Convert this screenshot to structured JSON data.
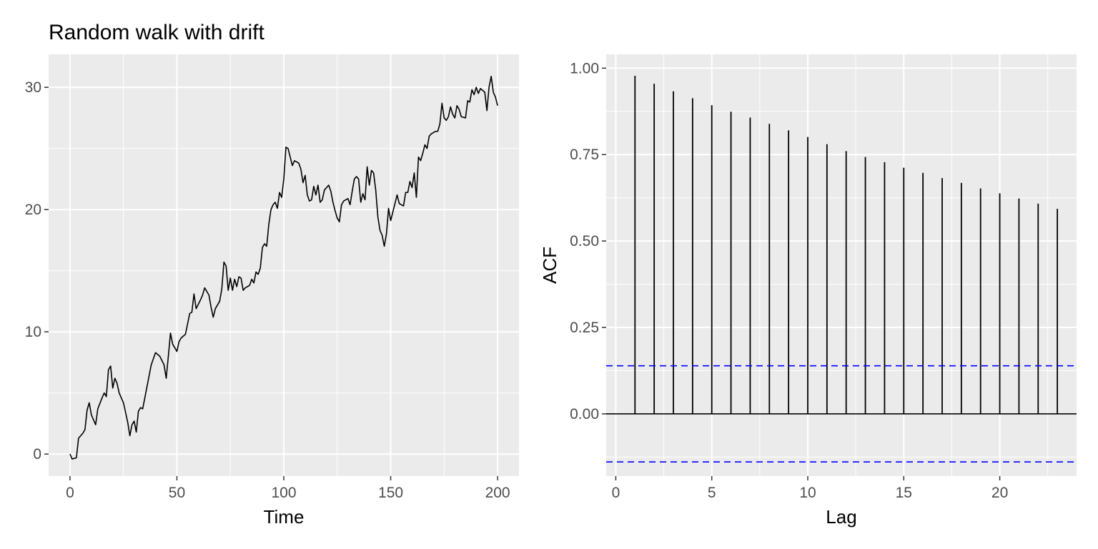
{
  "chart_data": [
    {
      "type": "line",
      "title": "Random walk with drift",
      "xlabel": "Time",
      "ylabel": "",
      "xlim": [
        -10,
        210
      ],
      "ylim": [
        -1.8,
        32.7
      ],
      "x_ticks": [
        0,
        50,
        100,
        150,
        200
      ],
      "y_ticks": [
        0,
        10,
        20,
        30
      ],
      "grid": true,
      "line_color": "#000000",
      "series_keypoints": [
        [
          0,
          0
        ],
        [
          1,
          -0.4
        ],
        [
          3,
          -0.3
        ],
        [
          4,
          1.3
        ],
        [
          6,
          1.7
        ],
        [
          7,
          2.0
        ],
        [
          8,
          3.6
        ],
        [
          9,
          4.2
        ],
        [
          10,
          3.2
        ],
        [
          12,
          2.4
        ],
        [
          13,
          3.7
        ],
        [
          15,
          4.6
        ],
        [
          16,
          5.0
        ],
        [
          17,
          4.7
        ],
        [
          18,
          6.9
        ],
        [
          19,
          7.2
        ],
        [
          20,
          5.4
        ],
        [
          21,
          6.2
        ],
        [
          22,
          5.8
        ],
        [
          23,
          5.0
        ],
        [
          25,
          4.2
        ],
        [
          27,
          2.6
        ],
        [
          28,
          1.5
        ],
        [
          29,
          2.4
        ],
        [
          30,
          2.7
        ],
        [
          31,
          1.8
        ],
        [
          32,
          3.5
        ],
        [
          33,
          3.8
        ],
        [
          34,
          3.7
        ],
        [
          36,
          5.5
        ],
        [
          38,
          7.3
        ],
        [
          40,
          8.3
        ],
        [
          42,
          8.0
        ],
        [
          44,
          7.3
        ],
        [
          45,
          6.2
        ],
        [
          46,
          8.0
        ],
        [
          47,
          9.9
        ],
        [
          48,
          9.0
        ],
        [
          50,
          8.4
        ],
        [
          51,
          9.2
        ],
        [
          52,
          9.5
        ],
        [
          54,
          9.8
        ],
        [
          56,
          11.5
        ],
        [
          57,
          11.6
        ],
        [
          58,
          13.1
        ],
        [
          59,
          11.9
        ],
        [
          61,
          12.6
        ],
        [
          62,
          13.0
        ],
        [
          63,
          13.6
        ],
        [
          65,
          13.0
        ],
        [
          66,
          12.0
        ],
        [
          67,
          11.2
        ],
        [
          68,
          11.9
        ],
        [
          70,
          12.5
        ],
        [
          71,
          13.5
        ],
        [
          72,
          15.7
        ],
        [
          73,
          15.4
        ],
        [
          74,
          13.4
        ],
        [
          75,
          14.4
        ],
        [
          76,
          13.4
        ],
        [
          77,
          14.3
        ],
        [
          78,
          13.7
        ],
        [
          79,
          14.5
        ],
        [
          80,
          14.4
        ],
        [
          81,
          13.4
        ],
        [
          82,
          13.6
        ],
        [
          84,
          13.8
        ],
        [
          85,
          14.3
        ],
        [
          86,
          14.0
        ],
        [
          87,
          14.9
        ],
        [
          88,
          14.7
        ],
        [
          89,
          15.2
        ],
        [
          90,
          16.9
        ],
        [
          91,
          17.2
        ],
        [
          92,
          17.0
        ],
        [
          93,
          18.8
        ],
        [
          94,
          20.0
        ],
        [
          95,
          20.4
        ],
        [
          96,
          20.6
        ],
        [
          97,
          20.1
        ],
        [
          98,
          21.4
        ],
        [
          99,
          21.0
        ],
        [
          100,
          22.5
        ],
        [
          101,
          25.1
        ],
        [
          102,
          25.0
        ],
        [
          103,
          24.3
        ],
        [
          104,
          23.6
        ],
        [
          105,
          24.0
        ],
        [
          107,
          23.8
        ],
        [
          108,
          23.3
        ],
        [
          109,
          22.2
        ],
        [
          110,
          22.8
        ],
        [
          111,
          21.2
        ],
        [
          112,
          20.7
        ],
        [
          113,
          20.8
        ],
        [
          114,
          21.9
        ],
        [
          115,
          21.2
        ],
        [
          116,
          22.0
        ],
        [
          117,
          20.6
        ],
        [
          118,
          20.8
        ],
        [
          119,
          21.6
        ],
        [
          121,
          22.0
        ],
        [
          122,
          21.5
        ],
        [
          123,
          20.6
        ],
        [
          124,
          19.9
        ],
        [
          125,
          19.3
        ],
        [
          126,
          19.0
        ],
        [
          127,
          20.4
        ],
        [
          128,
          20.7
        ],
        [
          130,
          20.9
        ],
        [
          131,
          20.4
        ],
        [
          132,
          21.5
        ],
        [
          133,
          22.5
        ],
        [
          134,
          22.7
        ],
        [
          135,
          22.5
        ],
        [
          136,
          20.6
        ],
        [
          137,
          21.3
        ],
        [
          138,
          20.8
        ],
        [
          139,
          23.5
        ],
        [
          140,
          22.0
        ],
        [
          141,
          23.2
        ],
        [
          142,
          23.0
        ],
        [
          143,
          21.6
        ],
        [
          144,
          19.4
        ],
        [
          145,
          18.3
        ],
        [
          146,
          17.9
        ],
        [
          147,
          17.0
        ],
        [
          148,
          18.0
        ],
        [
          149,
          20.1
        ],
        [
          150,
          19.1
        ],
        [
          151,
          19.8
        ],
        [
          152,
          20.5
        ],
        [
          153,
          21.2
        ],
        [
          154,
          20.5
        ],
        [
          156,
          20.3
        ],
        [
          157,
          21.4
        ],
        [
          158,
          21.4
        ],
        [
          159,
          22.3
        ],
        [
          160,
          21.8
        ],
        [
          161,
          23.0
        ],
        [
          162,
          21.0
        ],
        [
          163,
          24.3
        ],
        [
          164,
          24.0
        ],
        [
          165,
          24.6
        ],
        [
          166,
          25.3
        ],
        [
          167,
          25.0
        ],
        [
          168,
          26.0
        ],
        [
          169,
          26.2
        ],
        [
          171,
          26.4
        ],
        [
          172,
          26.4
        ],
        [
          173,
          27.0
        ],
        [
          174,
          28.7
        ],
        [
          175,
          27.5
        ],
        [
          176,
          27.3
        ],
        [
          177,
          27.6
        ],
        [
          178,
          28.4
        ],
        [
          179,
          27.8
        ],
        [
          180,
          27.5
        ],
        [
          181,
          28.5
        ],
        [
          182,
          28.2
        ],
        [
          183,
          27.6
        ],
        [
          185,
          27.5
        ],
        [
          186,
          28.9
        ],
        [
          187,
          28.8
        ],
        [
          188,
          29.8
        ],
        [
          189,
          29.4
        ],
        [
          190,
          30.0
        ],
        [
          191,
          29.5
        ],
        [
          192,
          29.9
        ],
        [
          194,
          29.6
        ],
        [
          195,
          28.1
        ],
        [
          196,
          30.0
        ],
        [
          197,
          30.9
        ],
        [
          198,
          29.6
        ],
        [
          199,
          29.2
        ],
        [
          200,
          28.5
        ]
      ]
    },
    {
      "type": "bar",
      "title": "",
      "xlabel": "Lag",
      "ylabel": "ACF",
      "xlim": [
        -0.5,
        24
      ],
      "ylim": [
        -0.18,
        1.04
      ],
      "x_ticks": [
        0,
        5,
        10,
        15,
        20
      ],
      "y_ticks": [
        0.0,
        0.25,
        0.5,
        0.75,
        1.0
      ],
      "y_tick_labels": [
        "0.00",
        "0.25",
        "0.50",
        "0.75",
        "1.00"
      ],
      "grid": true,
      "lags": [
        1,
        2,
        3,
        4,
        5,
        6,
        7,
        8,
        9,
        10,
        11,
        12,
        13,
        14,
        15,
        16,
        17,
        18,
        19,
        20,
        21,
        22,
        23
      ],
      "values": [
        0.978,
        0.955,
        0.933,
        0.913,
        0.893,
        0.874,
        0.857,
        0.839,
        0.82,
        0.801,
        0.78,
        0.76,
        0.743,
        0.728,
        0.712,
        0.697,
        0.682,
        0.668,
        0.652,
        0.638,
        0.623,
        0.608,
        0.593
      ],
      "confidence_bound": 0.139,
      "bound_color": "#0000ff",
      "bar_color": "#000000"
    }
  ]
}
